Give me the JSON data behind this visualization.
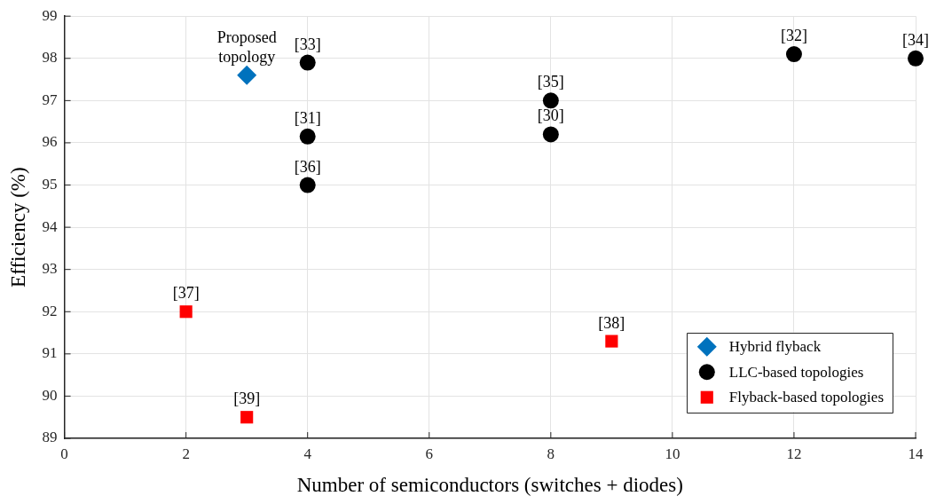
{
  "chart_data": {
    "type": "scatter",
    "xlabel": "Number of semiconductors (switches + diodes)",
    "ylabel": "Efficiency (%)",
    "xlim": [
      0,
      14
    ],
    "xticks": [
      0,
      2,
      4,
      6,
      8,
      10,
      12,
      14
    ],
    "ylim": [
      89,
      99
    ],
    "yticks": [
      89,
      90,
      91,
      92,
      93,
      94,
      95,
      96,
      97,
      98,
      99
    ],
    "grid": true,
    "legend": "bottom right",
    "series": [
      {
        "name": "Hybrid flyback",
        "color": "#0072bd",
        "marker": "diamond",
        "x": [
          3
        ],
        "values": [
          97.6
        ]
      },
      {
        "name": "LLC-based topologies",
        "color": "#000000",
        "marker": "circle",
        "x": [
          4,
          4,
          4,
          8,
          8,
          12,
          14
        ],
        "values": [
          97.9,
          96.15,
          95.0,
          97.0,
          96.2,
          98.1,
          98.0
        ]
      },
      {
        "name": "Flyback-based topologies",
        "color": "#ff0000",
        "marker": "square",
        "x": [
          2,
          3,
          9
        ],
        "values": [
          92.0,
          89.5,
          91.3
        ]
      }
    ],
    "annotations": [
      {
        "text": "Proposed topology",
        "x": 3,
        "y": 97.6
      },
      {
        "text": "[33]",
        "x": 4,
        "y": 97.9
      },
      {
        "text": "[31]",
        "x": 4,
        "y": 96.15
      },
      {
        "text": "[36]",
        "x": 4,
        "y": 95.0
      },
      {
        "text": "[35]",
        "x": 8,
        "y": 97.0
      },
      {
        "text": "[30]",
        "x": 8,
        "y": 96.2
      },
      {
        "text": "[32]",
        "x": 12,
        "y": 98.1
      },
      {
        "text": "[34]",
        "x": 14,
        "y": 98.0
      },
      {
        "text": "[37]",
        "x": 2,
        "y": 92.0
      },
      {
        "text": "[39]",
        "x": 3,
        "y": 89.5
      },
      {
        "text": "[38]",
        "x": 9,
        "y": 91.3
      }
    ]
  }
}
